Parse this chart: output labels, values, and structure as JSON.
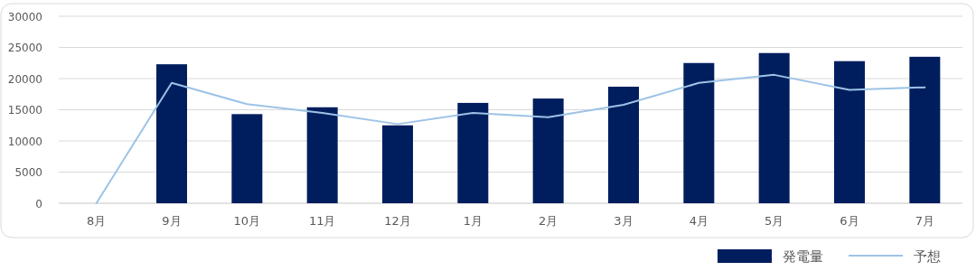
{
  "chart_data": {
    "type": "bar",
    "categories": [
      "8月",
      "9月",
      "10月",
      "11月",
      "12月",
      "1月",
      "2月",
      "3月",
      "4月",
      "5月",
      "6月",
      "7月"
    ],
    "series": [
      {
        "name": "発電量",
        "color": "#001e5e",
        "values": [
          null,
          22300,
          14300,
          15400,
          12500,
          16100,
          16800,
          18700,
          22500,
          24100,
          22800,
          23500
        ]
      },
      {
        "name": "予想",
        "type": "line",
        "color": "#9dc3e6",
        "values": [
          0,
          19300,
          15900,
          14500,
          12700,
          14500,
          13800,
          15800,
          19300,
          20600,
          18200,
          18600
        ]
      }
    ],
    "ylim": [
      0,
      30000
    ],
    "yticks": [
      0,
      5000,
      10000,
      15000,
      20000,
      25000,
      30000
    ],
    "grid": "y",
    "legend": "bottom right"
  }
}
